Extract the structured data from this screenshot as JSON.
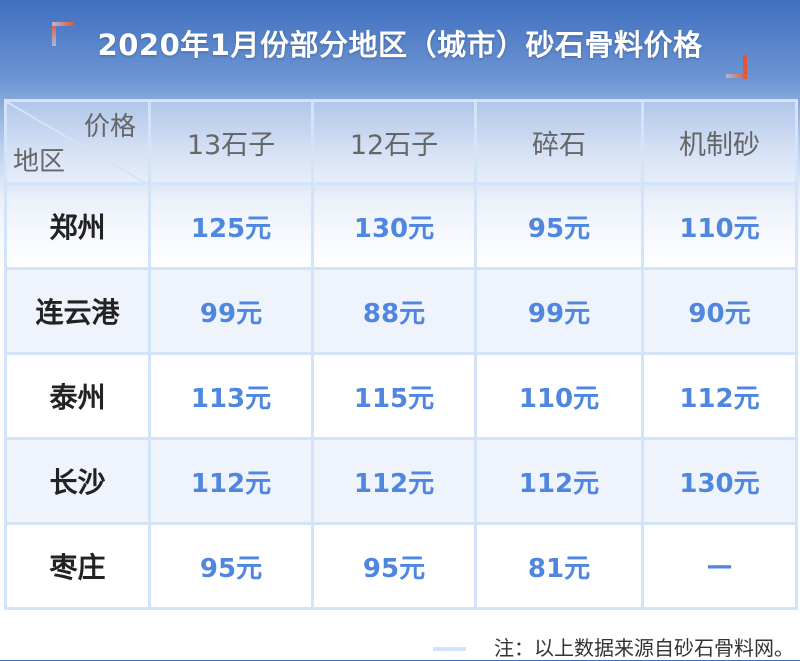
{
  "title": "2020年1月份部分地区（城市）砂石骨料价格",
  "table": {
    "corner_top": "价格",
    "corner_bottom": "地区",
    "columns": [
      "13石子",
      "12石子",
      "碎石",
      "机制砂"
    ],
    "rows": [
      {
        "region": "郑州",
        "values": [
          "125元",
          "130元",
          "95元",
          "110元"
        ]
      },
      {
        "region": "连云港",
        "values": [
          "99元",
          "88元",
          "99元",
          "90元"
        ]
      },
      {
        "region": "泰州",
        "values": [
          "113元",
          "115元",
          "110元",
          "112元"
        ]
      },
      {
        "region": "长沙",
        "values": [
          "112元",
          "112元",
          "112元",
          "130元"
        ]
      },
      {
        "region": "枣庄",
        "values": [
          "95元",
          "95元",
          "81元",
          "—"
        ]
      }
    ]
  },
  "note": "注：以上数据来源自砂石骨料网。",
  "colors": {
    "value": "#4f86e0",
    "border": "#d3e4f8",
    "alt_row": "#eef3fc",
    "accent": "#e8542f"
  }
}
